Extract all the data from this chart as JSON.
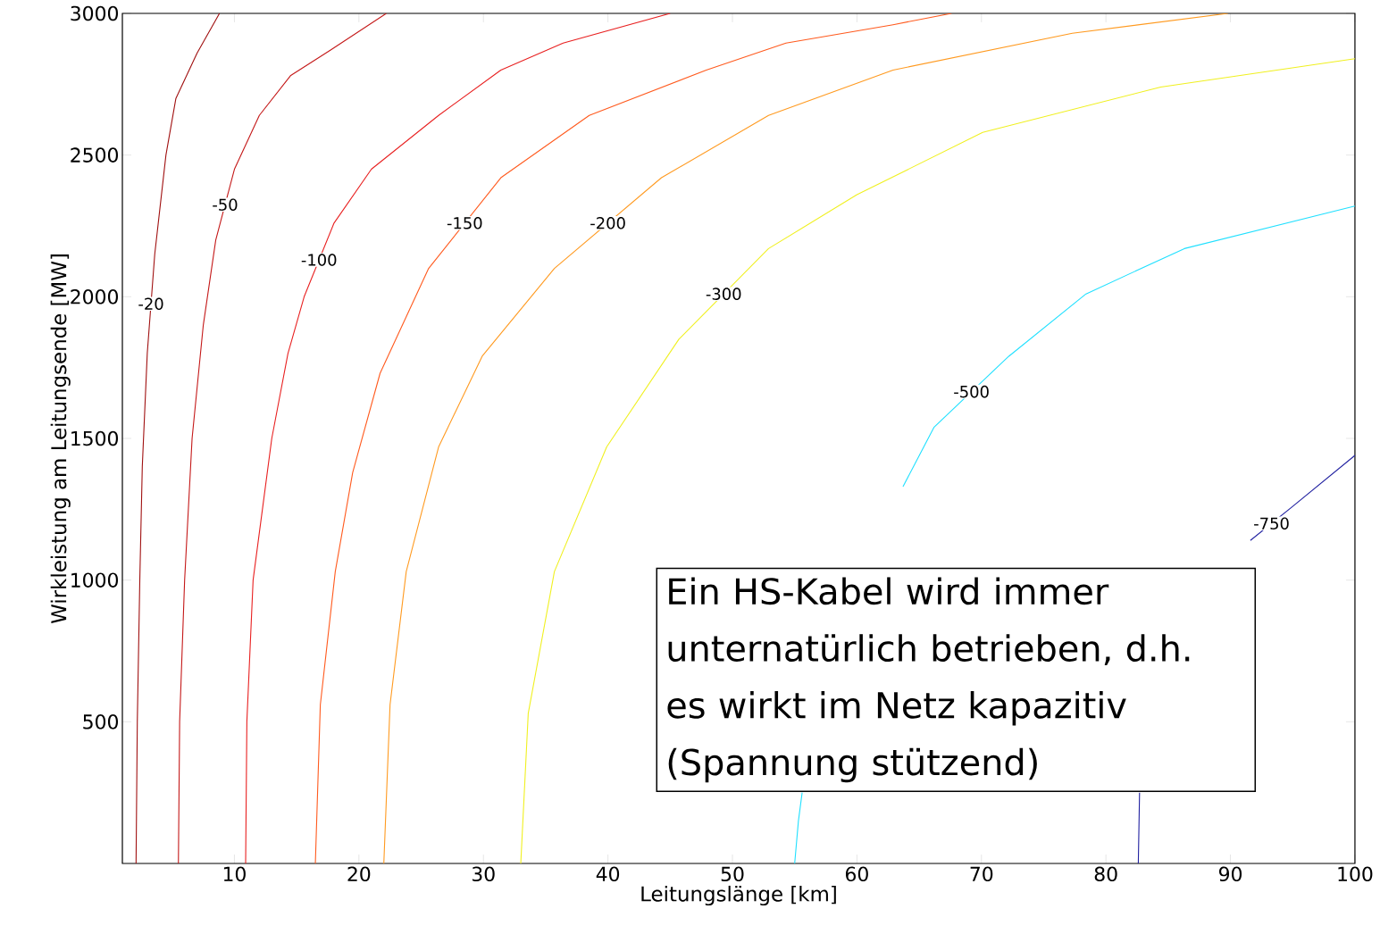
{
  "chart_data": {
    "type": "line",
    "xlabel": "Leitungslänge [km]",
    "ylabel": "Wirkleistung am Leitungsende [MW]",
    "xlim": [
      1,
      100
    ],
    "ylim": [
      0,
      3000
    ],
    "xticks": [
      10,
      20,
      30,
      40,
      50,
      60,
      70,
      80,
      90,
      100
    ],
    "yticks": [
      500,
      1000,
      1500,
      2000,
      2500,
      3000
    ],
    "annotations": [
      "Ein HS-Kabel wird immer unternatürlich betrieben, d.h. es wirkt im Netz kapazitiv (Spannung stützend)"
    ],
    "series": [
      {
        "name": "-20",
        "color": "#a01010",
        "x": [
          2.1,
          2.2,
          2.4,
          2.6,
          3.0,
          3.6,
          4.5,
          5.3,
          7,
          8.8
        ],
        "values": [
          0,
          500,
          1000,
          1400,
          1800,
          2150,
          2500,
          2700,
          2860,
          3000
        ]
      },
      {
        "name": "-50",
        "color": "#c41818",
        "x": [
          5.5,
          5.6,
          6.0,
          6.6,
          7.5,
          8.5,
          10,
          12,
          14.5,
          17.7,
          22.2
        ],
        "values": [
          0,
          500,
          1000,
          1500,
          1900,
          2200,
          2450,
          2640,
          2780,
          2870,
          3000
        ]
      },
      {
        "name": "-100",
        "color": "#e82020",
        "x": [
          10.9,
          11,
          11.5,
          13,
          14.3,
          15.6,
          18,
          21,
          26.4,
          31.4,
          36.4,
          45
        ],
        "values": [
          0,
          500,
          1000,
          1500,
          1800,
          2000,
          2260,
          2450,
          2640,
          2800,
          2895,
          3000
        ]
      },
      {
        "name": "-150",
        "color": "#ff5a1e",
        "x": [
          16.5,
          16.9,
          18.1,
          19.5,
          21.7,
          25.6,
          31.4,
          38.5,
          47.9,
          54.3,
          62.9,
          67.6
        ],
        "values": [
          0,
          560,
          1030,
          1380,
          1730,
          2100,
          2420,
          2640,
          2800,
          2895,
          2960,
          3000
        ]
      },
      {
        "name": "-200",
        "color": "#ff9a20",
        "x": [
          22,
          22.5,
          23.8,
          26.4,
          29.9,
          35.7,
          44.3,
          52.9,
          62.9,
          77.3,
          89.8
        ],
        "values": [
          0,
          560,
          1030,
          1470,
          1790,
          2100,
          2420,
          2640,
          2800,
          2930,
          3000
        ]
      },
      {
        "name": "-300",
        "color": "#f0f020",
        "x": [
          33,
          33.6,
          35.7,
          39.9,
          45.7,
          52.9,
          60,
          70.1,
          84.4,
          100
        ],
        "values": [
          0,
          530,
          1030,
          1470,
          1850,
          2170,
          2360,
          2580,
          2740,
          2840
        ]
      },
      {
        "name": "-500",
        "color": "#20e0ff",
        "x": [
          55,
          55.3,
          55.6,
          null,
          63.7,
          66.2,
          72.2,
          78.4,
          86.3,
          100
        ],
        "values": [
          0,
          150,
          250,
          null,
          1330,
          1540,
          1790,
          2010,
          2170,
          2320
        ]
      },
      {
        "name": "-750",
        "color": "#2020a0",
        "x": [
          82.6,
          82.7,
          null,
          91.6,
          95,
          100
        ],
        "values": [
          0,
          250,
          null,
          1140,
          1260,
          1440
        ]
      }
    ]
  }
}
